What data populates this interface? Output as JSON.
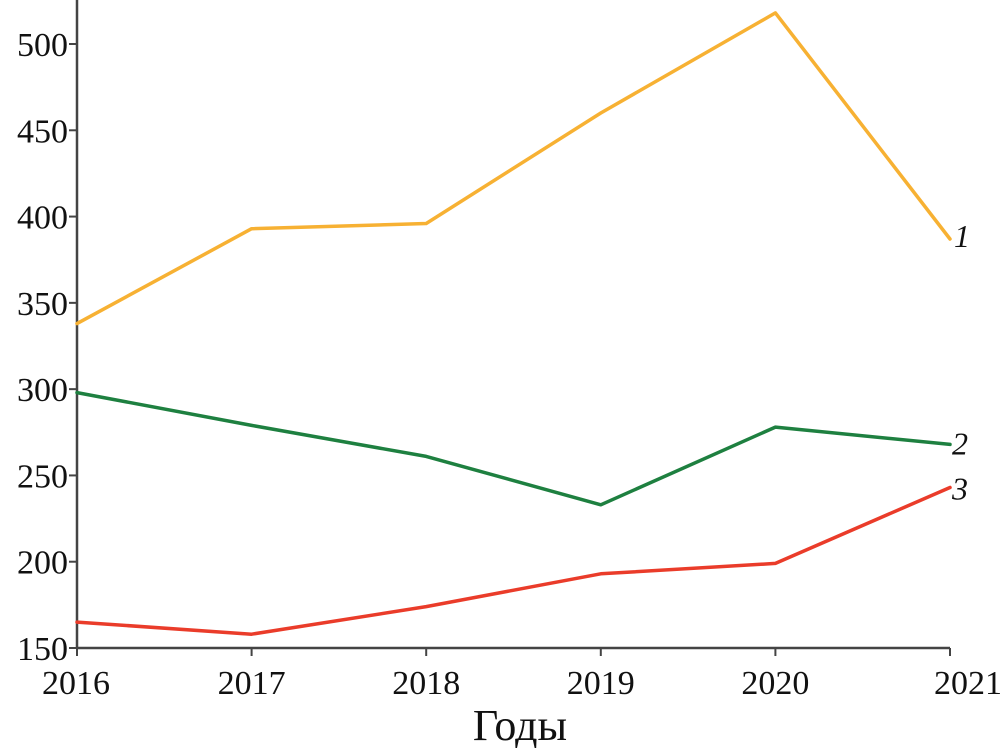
{
  "chart_data": {
    "type": "line",
    "title": "",
    "xlabel": "Годы",
    "ylabel": "",
    "x": [
      2016,
      2017,
      2018,
      2019,
      2020,
      2021
    ],
    "xlim": [
      2016,
      2021
    ],
    "ylim": [
      150,
      520
    ],
    "yticks": [
      150,
      200,
      250,
      300,
      350,
      400,
      450,
      500
    ],
    "grid": false,
    "series": [
      {
        "name": "1",
        "color": "#f7b133",
        "values": [
          338,
          393,
          396,
          460,
          518,
          387
        ]
      },
      {
        "name": "2",
        "color": "#1e8040",
        "values": [
          298,
          279,
          261,
          233,
          278,
          268
        ]
      },
      {
        "name": "3",
        "color": "#ea3c2a",
        "values": [
          165,
          158,
          174,
          193,
          199,
          243
        ]
      }
    ]
  }
}
